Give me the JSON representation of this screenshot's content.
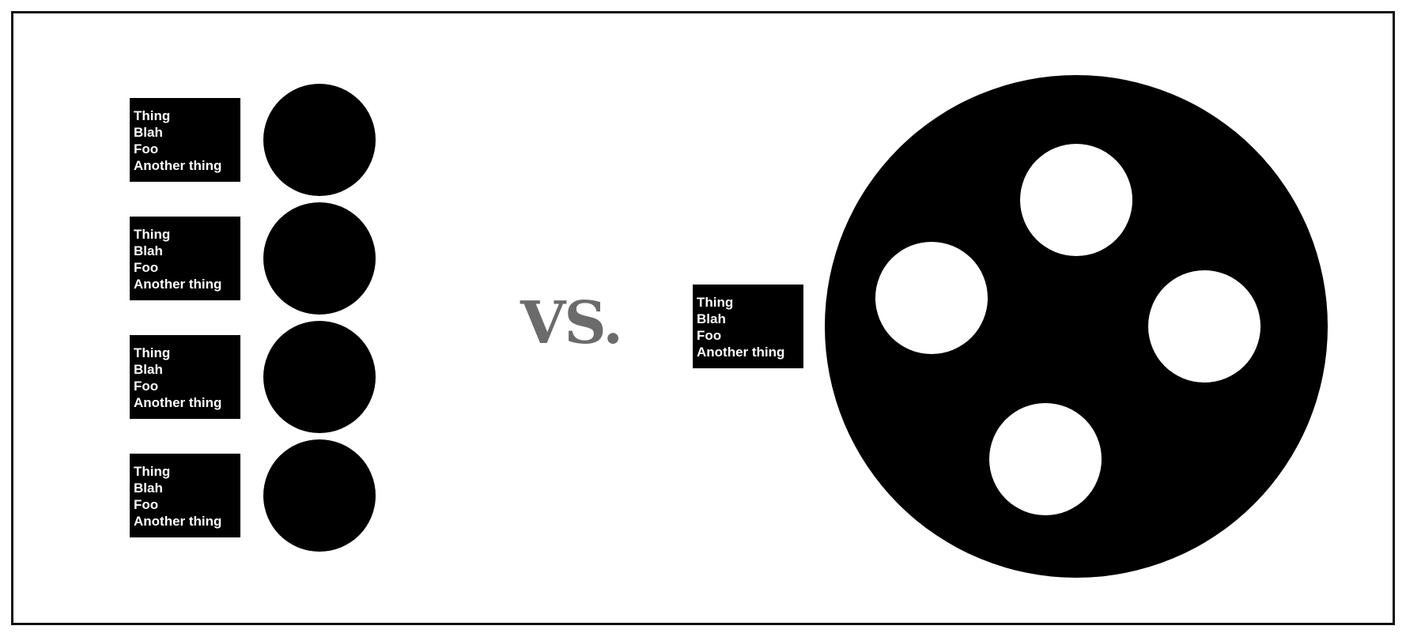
{
  "left_group": {
    "items": [
      {
        "lines": [
          "Thing",
          "Blah",
          "Foo",
          "Another thing"
        ]
      },
      {
        "lines": [
          "Thing",
          "Blah",
          "Foo",
          "Another thing"
        ]
      },
      {
        "lines": [
          "Thing",
          "Blah",
          "Foo",
          "Another thing"
        ]
      },
      {
        "lines": [
          "Thing",
          "Blah",
          "Foo",
          "Another thing"
        ]
      }
    ]
  },
  "separator": {
    "text": "VS."
  },
  "right_group": {
    "label": {
      "lines": [
        "Thing",
        "Blah",
        "Foo",
        "Another thing"
      ]
    },
    "hole_count": 4
  }
}
